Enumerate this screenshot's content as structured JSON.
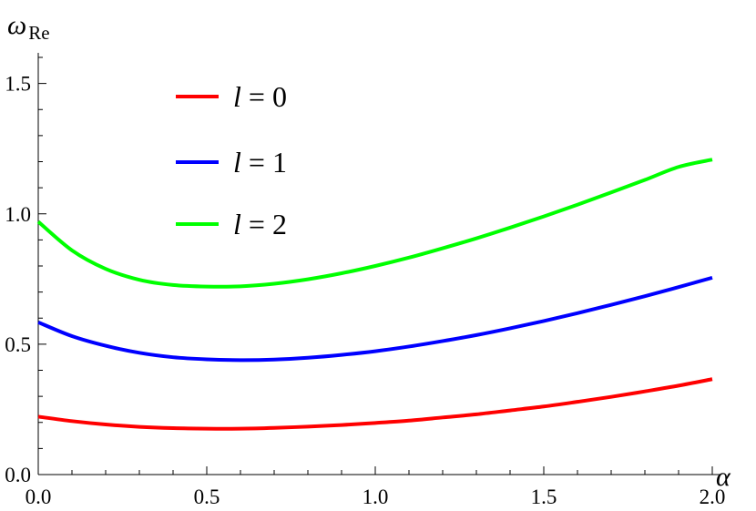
{
  "chart_data": {
    "type": "line",
    "title": "",
    "xlabel": "α",
    "ylabel": {
      "symbol": "ω",
      "subscript": "Re"
    },
    "xlim": [
      0,
      2
    ],
    "ylim": [
      0,
      1.6
    ],
    "x_ticks": [
      "0.0",
      "0.5",
      "1.0",
      "1.5",
      "2.0"
    ],
    "y_ticks": [
      "0.0",
      "0.5",
      "1.0",
      "1.5"
    ],
    "grid": false,
    "legend_position": "top-left",
    "x": [
      0.0,
      0.1,
      0.2,
      0.3,
      0.4,
      0.5,
      0.6,
      0.7,
      0.8,
      0.9,
      1.0,
      1.1,
      1.2,
      1.3,
      1.4,
      1.5,
      1.6,
      1.7,
      1.8,
      1.9,
      2.0
    ],
    "series": [
      {
        "name": "l = 0",
        "legend": {
          "var": "l",
          "rest": " = 0"
        },
        "color": "#ff0000",
        "values": [
          0.222,
          0.205,
          0.192,
          0.183,
          0.178,
          0.176,
          0.176,
          0.179,
          0.184,
          0.19,
          0.198,
          0.207,
          0.219,
          0.231,
          0.246,
          0.261,
          0.279,
          0.298,
          0.319,
          0.341,
          0.366
        ]
      },
      {
        "name": "l = 1",
        "legend": {
          "var": "l",
          "rest": " = 1"
        },
        "color": "#0000ff",
        "values": [
          0.584,
          0.531,
          0.494,
          0.467,
          0.45,
          0.442,
          0.439,
          0.441,
          0.448,
          0.459,
          0.473,
          0.491,
          0.512,
          0.535,
          0.561,
          0.589,
          0.619,
          0.651,
          0.684,
          0.719,
          0.755
        ]
      },
      {
        "name": "l = 2",
        "legend": {
          "var": "l",
          "rest": " = 2"
        },
        "color": "#00ff00",
        "values": [
          0.97,
          0.86,
          0.789,
          0.747,
          0.727,
          0.721,
          0.722,
          0.732,
          0.749,
          0.772,
          0.8,
          0.832,
          0.868,
          0.906,
          0.947,
          0.99,
          1.035,
          1.082,
          1.13,
          1.18,
          1.208
        ]
      }
    ]
  }
}
